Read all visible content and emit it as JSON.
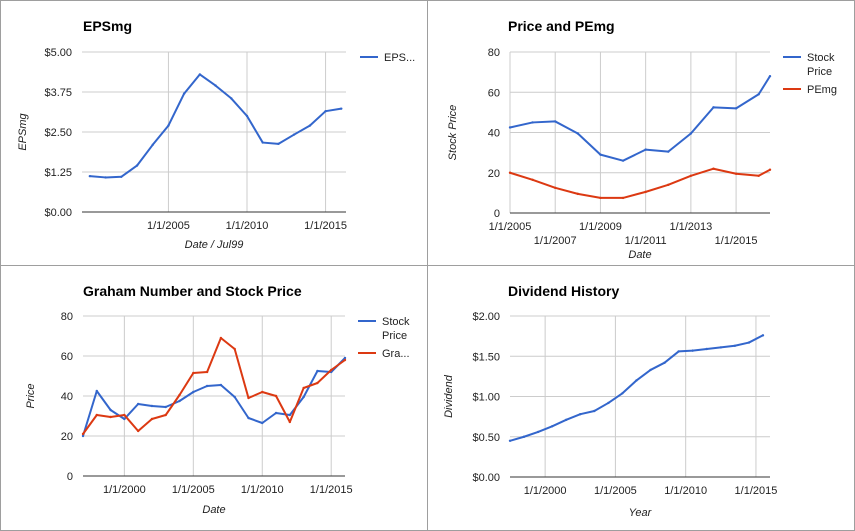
{
  "colors": {
    "blue": "#3366cc",
    "red": "#dc3912",
    "grid": "#cccccc",
    "text": "#222222"
  },
  "chart_data": [
    {
      "type": "line",
      "title": "EPSmg",
      "xlabel": "Date / Jul99",
      "ylabel": "EPSmg",
      "ylim": [
        0,
        5
      ],
      "yticks": [
        "$0.00",
        "$1.25",
        "$2.50",
        "$3.75",
        "$5.00"
      ],
      "xticks": [
        "1/1/2005",
        "1/1/2010",
        "1/1/2015"
      ],
      "legend": "right",
      "grid": true,
      "series": [
        {
          "name": "EPS...",
          "color": "#3366cc",
          "x": [
            2000,
            2001,
            2002,
            2003,
            2004,
            2005,
            2006,
            2007,
            2008,
            2009,
            2010,
            2011,
            2012,
            2013,
            2014,
            2015,
            2016
          ],
          "values": [
            1.12,
            1.08,
            1.1,
            1.45,
            2.1,
            2.7,
            3.7,
            4.3,
            3.95,
            3.55,
            3.0,
            2.17,
            2.13,
            2.42,
            2.7,
            3.15,
            3.23
          ]
        }
      ]
    },
    {
      "type": "line",
      "title": "Price and PEmg",
      "xlabel": "Date",
      "ylabel": "Stock Price",
      "ylim": [
        0,
        80
      ],
      "yticks": [
        "0",
        "20",
        "40",
        "60",
        "80"
      ],
      "xticks": [
        "1/1/2005",
        "1/1/2007",
        "1/1/2009",
        "1/1/2011",
        "1/1/2013",
        "1/1/2015"
      ],
      "legend": "right",
      "grid": true,
      "series": [
        {
          "name": "Stock Price",
          "color": "#3366cc",
          "x": [
            2005,
            2006,
            2007,
            2008,
            2009,
            2010,
            2011,
            2012,
            2013,
            2014,
            2015,
            2016,
            2016.5
          ],
          "values": [
            42.5,
            45,
            45.5,
            39.5,
            29,
            26,
            31.5,
            30.5,
            39.5,
            52.5,
            52,
            59,
            68
          ]
        },
        {
          "name": "PEmg",
          "color": "#dc3912",
          "x": [
            2005,
            2006,
            2007,
            2008,
            2009,
            2010,
            2011,
            2012,
            2013,
            2014,
            2015,
            2016,
            2016.5
          ],
          "values": [
            20,
            16.5,
            12.5,
            9.5,
            7.5,
            7.5,
            10.5,
            14,
            18.5,
            22,
            19.5,
            18.5,
            21.5
          ]
        }
      ]
    },
    {
      "type": "line",
      "title": "Graham Number and Stock Price",
      "xlabel": "Date",
      "ylabel": "Price",
      "ylim": [
        0,
        80
      ],
      "yticks": [
        "0",
        "20",
        "40",
        "60",
        "80"
      ],
      "xticks": [
        "1/1/2000",
        "1/1/2005",
        "1/1/2010",
        "1/1/2015"
      ],
      "legend": "right",
      "grid": true,
      "series": [
        {
          "name": "Stock Price",
          "color": "#3366cc",
          "x": [
            1997,
            1998,
            1999,
            2000,
            2001,
            2002,
            2003,
            2004,
            2005,
            2006,
            2007,
            2008,
            2009,
            2010,
            2011,
            2012,
            2013,
            2014,
            2015,
            2016
          ],
          "values": [
            20,
            42.5,
            33,
            28.5,
            36,
            35,
            34.5,
            37.5,
            42,
            45,
            45.5,
            39.5,
            29,
            26.5,
            31.5,
            30.5,
            39.5,
            52.5,
            52,
            59
          ]
        },
        {
          "name": "Gra...",
          "color": "#dc3912",
          "x": [
            1997,
            1998,
            1999,
            2000,
            2001,
            2002,
            2003,
            2004,
            2005,
            2006,
            2007,
            2008,
            2009,
            2010,
            2011,
            2012,
            2013,
            2014,
            2015,
            2016
          ],
          "values": [
            21,
            30.5,
            29.5,
            30.5,
            22.5,
            28.5,
            30.5,
            40.5,
            51.5,
            52,
            69,
            63.5,
            39,
            42,
            40,
            27,
            44,
            46.5,
            53,
            58
          ]
        }
      ]
    },
    {
      "type": "line",
      "title": "Dividend History",
      "xlabel": "Year",
      "ylabel": "Dividend",
      "ylim": [
        0,
        2
      ],
      "yticks": [
        "$0.00",
        "$0.50",
        "$1.00",
        "$1.50",
        "$2.00"
      ],
      "xticks": [
        "1/1/2000",
        "1/1/2005",
        "1/1/2010",
        "1/1/2015"
      ],
      "legend": "none",
      "grid": true,
      "series": [
        {
          "color": "#3366cc",
          "x": [
            1997.5,
            1998.5,
            1999.5,
            2000.5,
            2001.5,
            2002.5,
            2003.5,
            2004.5,
            2005.5,
            2006.5,
            2007.5,
            2008.5,
            2009.5,
            2010.5,
            2011.5,
            2012.5,
            2013.5,
            2014.5,
            2015.5
          ],
          "values": [
            0.45,
            0.5,
            0.56,
            0.63,
            0.71,
            0.78,
            0.82,
            0.92,
            1.04,
            1.2,
            1.33,
            1.42,
            1.56,
            1.57,
            1.59,
            1.61,
            1.63,
            1.67,
            1.76
          ]
        }
      ]
    }
  ]
}
